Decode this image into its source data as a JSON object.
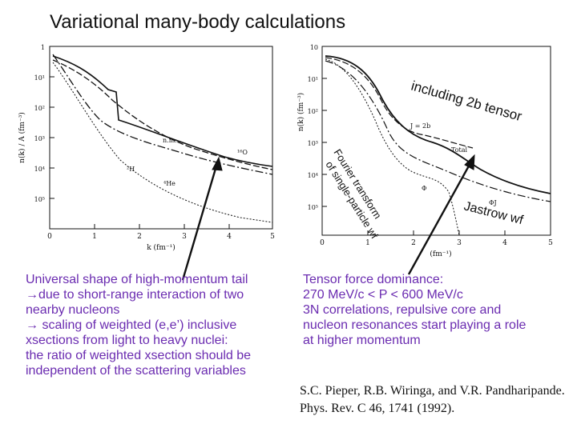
{
  "title": "Variational many-body calculations",
  "left_plot": {
    "ylabel": "n(k) / A (fm⁻³)",
    "xlabel": "k (fm⁻¹)",
    "xticks": [
      "0",
      "1",
      "2",
      "3",
      "4",
      "5"
    ],
    "yticks": [
      "1",
      "10¹",
      "10²",
      "10³",
      "10⁴",
      "10⁵"
    ],
    "curve_labels": [
      "n.m.",
      "¹⁶O",
      "²H",
      "⁴He"
    ]
  },
  "right_plot": {
    "ylabel": "n(k) (fm⁻³)",
    "xlabel": "(fm⁻¹)",
    "xticks": [
      "0",
      "1",
      "2",
      "3",
      "4",
      "5"
    ],
    "yticks": [
      "10",
      "10¹",
      "10²",
      "10³",
      "10⁴",
      "10⁵"
    ],
    "curve_labels": [
      "J = 2b",
      "Total",
      "Φ",
      "ΦJ"
    ]
  },
  "annotations": {
    "including_2b_tensor": "including 2b tensor",
    "fourier_line1": "Fourier transform",
    "fourier_line2": "of single-particle wf",
    "jastrow": "Jastrow wf"
  },
  "left_text": [
    "Universal shape of high-momentum tail",
    "→due to short-range interaction of two",
    "   nearby nucleons",
    "→ scaling of weighted (e,e’) inclusive",
    "    xsections from light to heavy nuclei:",
    "    the ratio of weighted xsection should be",
    "    independent of the scattering variables"
  ],
  "right_text": [
    "Tensor force dominance:",
    "270 MeV/c  < P < 600 MeV/c",
    "3N correlations, repulsive core and",
    "nucleon resonances start playing a role",
    "at higher momentum"
  ],
  "citation": {
    "line1": "S.C. Pieper,  R.B. Wiringa,  and V.R. Pandharipande.",
    "line2": "Phys. Rev. C 46, 1741 (1992)."
  },
  "colors": {
    "text_purple": "#6a2bb0",
    "ink": "#111111"
  }
}
